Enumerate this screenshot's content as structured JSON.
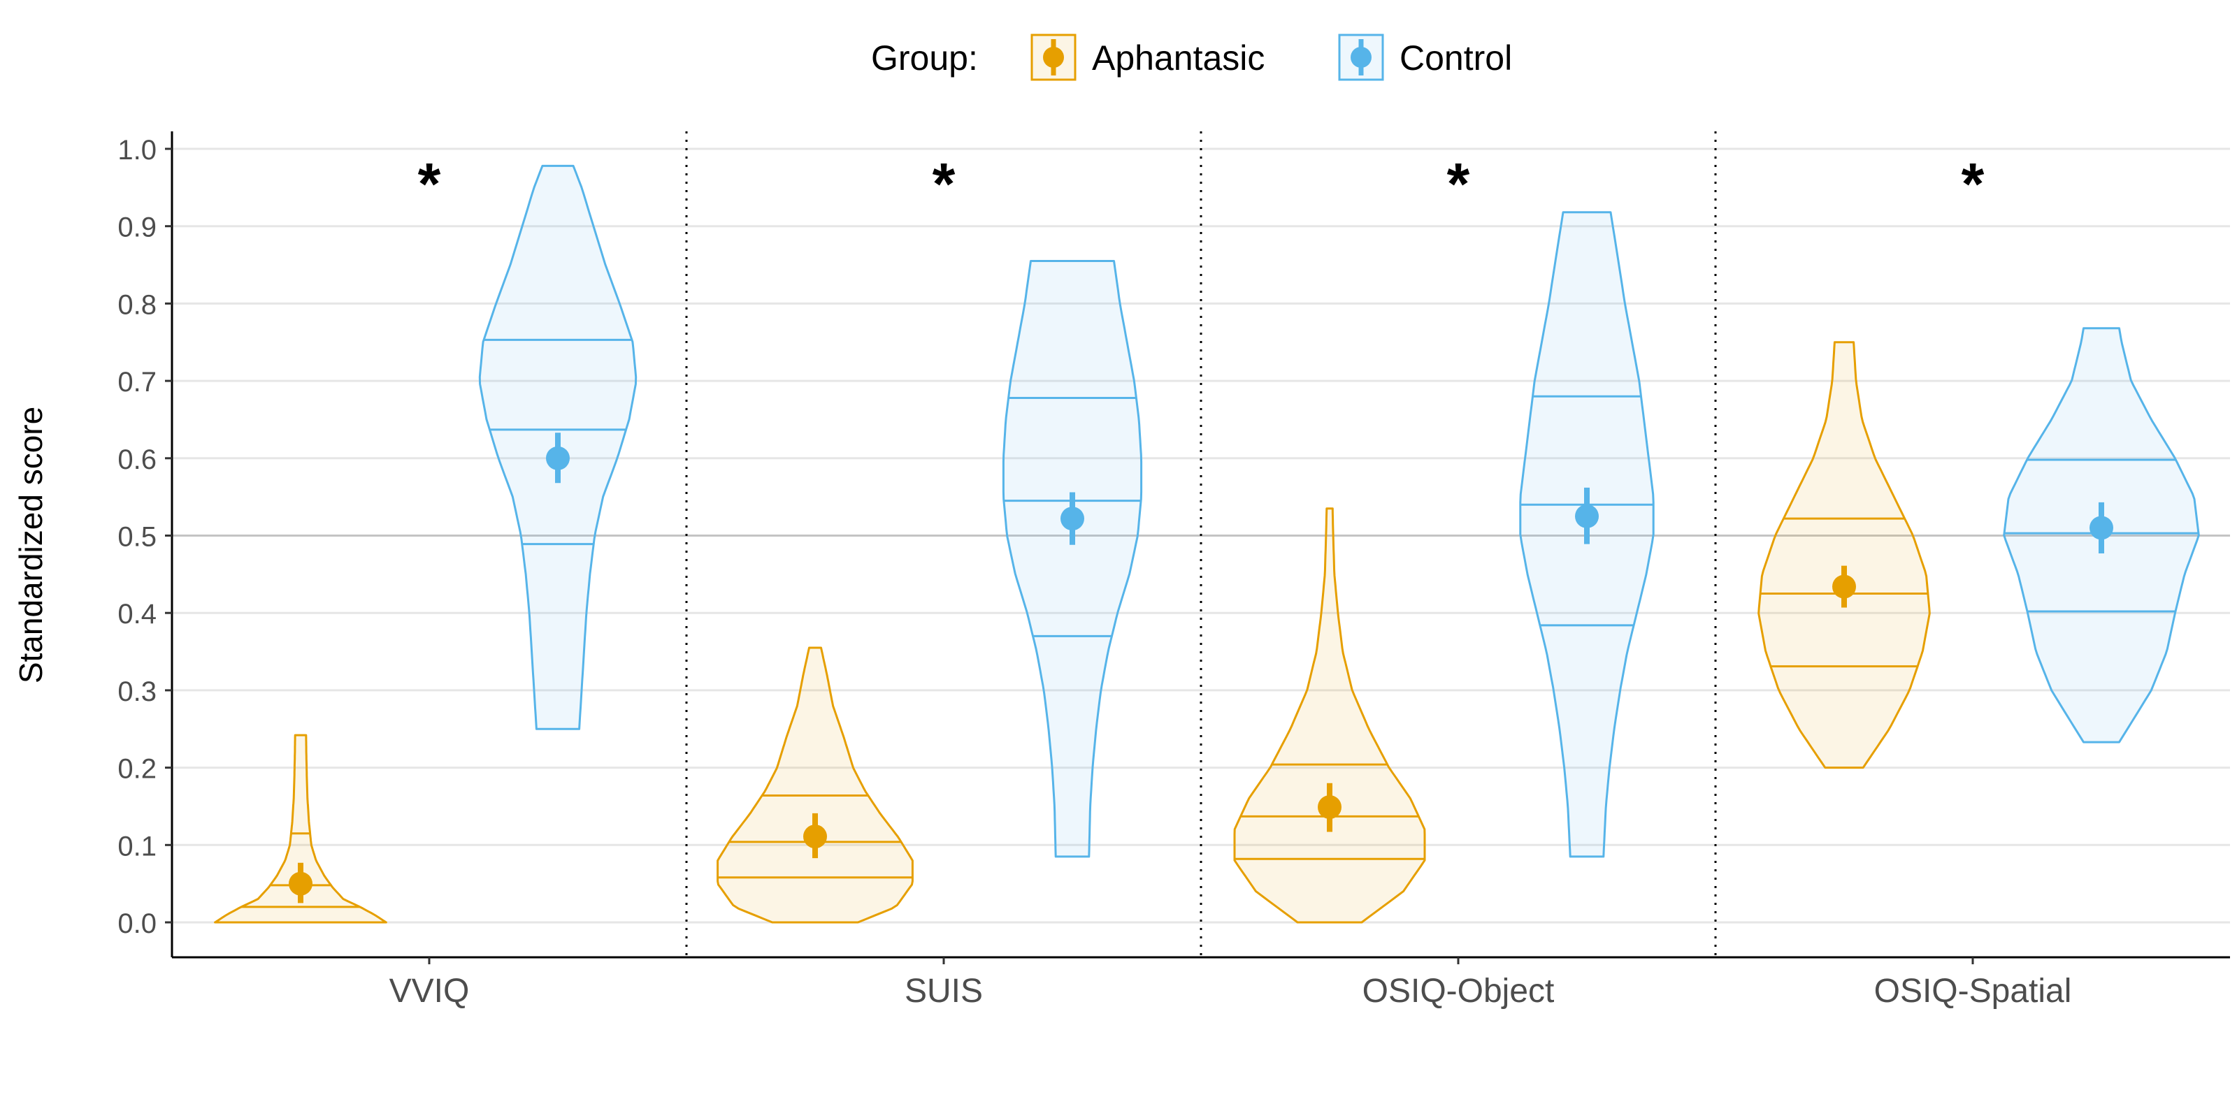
{
  "chart_data": {
    "type": "violin",
    "ylabel": "Standardized score",
    "xlabel": "",
    "ylim": [
      -0.05,
      1.03
    ],
    "yticks": [
      "0.0",
      "0.1",
      "0.2",
      "0.3",
      "0.4",
      "0.5",
      "0.6",
      "0.7",
      "0.8",
      "0.9",
      "1.0"
    ],
    "reference_line": 0.5,
    "grid": true,
    "legend": {
      "title": "Group:",
      "position": "top",
      "entries": [
        {
          "name": "Aphantasic",
          "color": "#E69F00"
        },
        {
          "name": "Control",
          "color": "#56B4E9"
        }
      ]
    },
    "categories": [
      "VVIQ",
      "SUIS",
      "OSIQ-Object",
      "OSIQ-Spatial"
    ],
    "significance": [
      "*",
      "*",
      "*",
      "*"
    ],
    "series": [
      {
        "name": "Aphantasic",
        "color": "#E69F00",
        "groups": [
          {
            "category": "VVIQ",
            "mean": 0.05,
            "ci": [
              0.025,
              0.077
            ],
            "quartiles": [
              0.02,
              0.048,
              0.115
            ],
            "profile": [
              [
                0.0,
                0.72
              ],
              [
                0.01,
                0.62
              ],
              [
                0.02,
                0.5
              ],
              [
                0.03,
                0.36
              ],
              [
                0.045,
                0.27
              ],
              [
                0.06,
                0.2
              ],
              [
                0.08,
                0.13
              ],
              [
                0.1,
                0.09
              ],
              [
                0.13,
                0.07
              ],
              [
                0.16,
                0.058
              ],
              [
                0.19,
                0.052
              ],
              [
                0.22,
                0.048
              ],
              [
                0.242,
                0.046
              ]
            ]
          },
          {
            "category": "SUIS",
            "mean": 0.111,
            "ci": [
              0.083,
              0.141
            ],
            "quartiles": [
              0.058,
              0.104,
              0.164
            ],
            "profile": [
              [
                0.0,
                0.36
              ],
              [
                0.02,
                0.68
              ],
              [
                0.05,
                0.82
              ],
              [
                0.08,
                0.82
              ],
              [
                0.11,
                0.7
              ],
              [
                0.14,
                0.55
              ],
              [
                0.17,
                0.42
              ],
              [
                0.2,
                0.32
              ],
              [
                0.24,
                0.24
              ],
              [
                0.28,
                0.15
              ],
              [
                0.32,
                0.1
              ],
              [
                0.355,
                0.05
              ]
            ]
          },
          {
            "category": "OSIQ-Object",
            "mean": 0.149,
            "ci": [
              0.117,
              0.18
            ],
            "quartiles": [
              0.082,
              0.137,
              0.204
            ],
            "profile": [
              [
                0.0,
                0.27
              ],
              [
                0.04,
                0.62
              ],
              [
                0.08,
                0.8
              ],
              [
                0.12,
                0.8
              ],
              [
                0.16,
                0.68
              ],
              [
                0.2,
                0.5
              ],
              [
                0.25,
                0.33
              ],
              [
                0.3,
                0.19
              ],
              [
                0.35,
                0.11
              ],
              [
                0.4,
                0.07
              ],
              [
                0.45,
                0.04
              ],
              [
                0.5,
                0.03
              ],
              [
                0.535,
                0.025
              ]
            ]
          },
          {
            "category": "OSIQ-Spatial",
            "mean": 0.434,
            "ci": [
              0.407,
              0.461
            ],
            "quartiles": [
              0.331,
              0.425,
              0.522
            ],
            "profile": [
              [
                0.2,
                0.16
              ],
              [
                0.25,
                0.38
              ],
              [
                0.3,
                0.55
              ],
              [
                0.35,
                0.66
              ],
              [
                0.4,
                0.72
              ],
              [
                0.45,
                0.69
              ],
              [
                0.5,
                0.58
              ],
              [
                0.55,
                0.42
              ],
              [
                0.6,
                0.26
              ],
              [
                0.65,
                0.15
              ],
              [
                0.7,
                0.1
              ],
              [
                0.75,
                0.08
              ]
            ]
          }
        ]
      },
      {
        "name": "Control",
        "color": "#56B4E9",
        "groups": [
          {
            "category": "VVIQ",
            "mean": 0.6,
            "ci": [
              0.568,
              0.633
            ],
            "quartiles": [
              0.489,
              0.637,
              0.753
            ],
            "profile": [
              [
                0.25,
                0.18
              ],
              [
                0.3,
                0.2
              ],
              [
                0.35,
                0.22
              ],
              [
                0.4,
                0.24
              ],
              [
                0.45,
                0.27
              ],
              [
                0.5,
                0.31
              ],
              [
                0.55,
                0.38
              ],
              [
                0.6,
                0.5
              ],
              [
                0.65,
                0.6
              ],
              [
                0.7,
                0.66
              ],
              [
                0.75,
                0.63
              ],
              [
                0.8,
                0.52
              ],
              [
                0.85,
                0.4
              ],
              [
                0.9,
                0.3
              ],
              [
                0.95,
                0.2
              ],
              [
                0.978,
                0.13
              ]
            ]
          },
          {
            "category": "SUIS",
            "mean": 0.522,
            "ci": [
              0.488,
              0.556
            ],
            "quartiles": [
              0.37,
              0.545,
              0.678
            ],
            "profile": [
              [
                0.085,
                0.14
              ],
              [
                0.15,
                0.15
              ],
              [
                0.2,
                0.17
              ],
              [
                0.25,
                0.2
              ],
              [
                0.3,
                0.24
              ],
              [
                0.35,
                0.3
              ],
              [
                0.4,
                0.38
              ],
              [
                0.45,
                0.48
              ],
              [
                0.5,
                0.55
              ],
              [
                0.55,
                0.58
              ],
              [
                0.6,
                0.58
              ],
              [
                0.65,
                0.56
              ],
              [
                0.7,
                0.52
              ],
              [
                0.75,
                0.46
              ],
              [
                0.8,
                0.4
              ],
              [
                0.855,
                0.35
              ]
            ]
          },
          {
            "category": "OSIQ-Object",
            "mean": 0.525,
            "ci": [
              0.489,
              0.562
            ],
            "quartiles": [
              0.384,
              0.54,
              0.68
            ],
            "profile": [
              [
                0.085,
                0.14
              ],
              [
                0.15,
                0.16
              ],
              [
                0.2,
                0.19
              ],
              [
                0.25,
                0.23
              ],
              [
                0.3,
                0.28
              ],
              [
                0.35,
                0.34
              ],
              [
                0.4,
                0.42
              ],
              [
                0.45,
                0.5
              ],
              [
                0.5,
                0.56
              ],
              [
                0.55,
                0.56
              ],
              [
                0.6,
                0.52
              ],
              [
                0.65,
                0.48
              ],
              [
                0.7,
                0.44
              ],
              [
                0.75,
                0.38
              ],
              [
                0.8,
                0.32
              ],
              [
                0.85,
                0.27
              ],
              [
                0.918,
                0.2
              ]
            ]
          },
          {
            "category": "OSIQ-Spatial",
            "mean": 0.51,
            "ci": [
              0.477,
              0.543
            ],
            "quartiles": [
              0.402,
              0.503,
              0.598
            ],
            "profile": [
              [
                0.233,
                0.15
              ],
              [
                0.27,
                0.3
              ],
              [
                0.3,
                0.42
              ],
              [
                0.35,
                0.55
              ],
              [
                0.4,
                0.62
              ],
              [
                0.45,
                0.7
              ],
              [
                0.5,
                0.82
              ],
              [
                0.55,
                0.78
              ],
              [
                0.6,
                0.62
              ],
              [
                0.65,
                0.42
              ],
              [
                0.7,
                0.25
              ],
              [
                0.75,
                0.17
              ],
              [
                0.768,
                0.15
              ]
            ]
          }
        ]
      }
    ]
  }
}
